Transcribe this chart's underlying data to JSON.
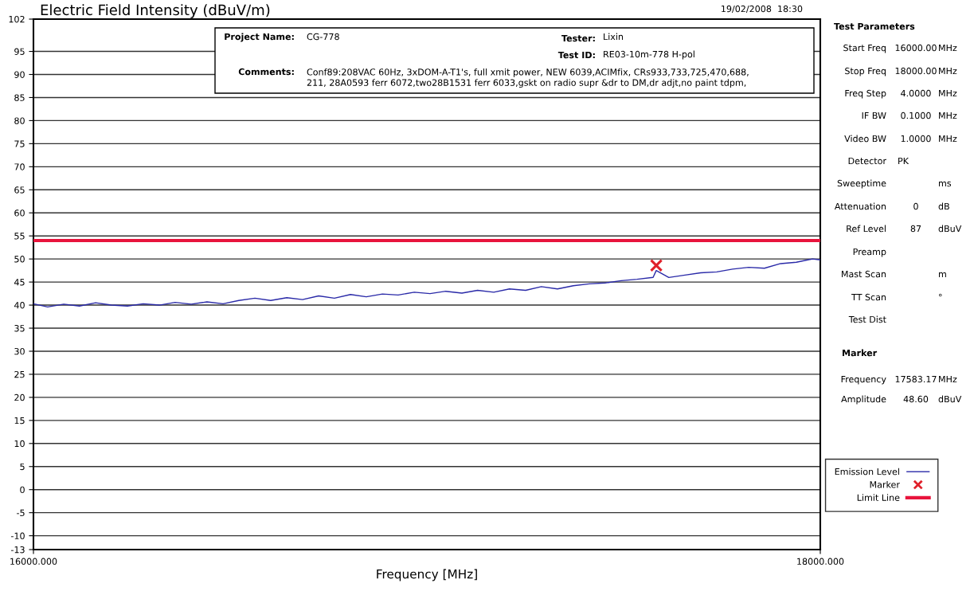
{
  "chart_data": {
    "type": "line",
    "title": "Electric Field Intensity (dBuV/m)",
    "xlabel": "Frequency [MHz]",
    "series": [
      {
        "name": "Emission Level",
        "color": "#2a2aa8",
        "marker": "none",
        "line_style": "solid",
        "x": [
          16000,
          16036,
          16077,
          16117,
          16158,
          16198,
          16239,
          16279,
          16320,
          16360,
          16401,
          16441,
          16482,
          16522,
          16563,
          16603,
          16644,
          16684,
          16725,
          16765,
          16806,
          16846,
          16887,
          16927,
          16968,
          17008,
          17048,
          17089,
          17129,
          17170,
          17210,
          17251,
          17291,
          17332,
          17372,
          17413,
          17453,
          17494,
          17534,
          17575,
          17583,
          17615,
          17656,
          17696,
          17737,
          17777,
          17818,
          17858,
          17899,
          17939,
          17980,
          18000
        ],
        "values": [
          40.3,
          39.6,
          40.2,
          39.8,
          40.5,
          40.0,
          39.8,
          40.3,
          40.0,
          40.6,
          40.2,
          40.7,
          40.3,
          41.0,
          41.5,
          41.0,
          41.6,
          41.2,
          42.0,
          41.5,
          42.3,
          41.8,
          42.4,
          42.2,
          42.8,
          42.5,
          43.0,
          42.6,
          43.2,
          42.8,
          43.5,
          43.2,
          44.0,
          43.5,
          44.2,
          44.6,
          44.8,
          45.3,
          45.6,
          46.0,
          47.5,
          46.0,
          46.5,
          47.0,
          47.2,
          47.8,
          48.2,
          48.0,
          49.0,
          49.3,
          50.0,
          49.8
        ]
      },
      {
        "name": "Marker",
        "type": "scatter",
        "color": "#e0202a",
        "marker": "cross",
        "x": [
          17583.17
        ],
        "values": [
          48.6
        ]
      },
      {
        "name": "Limit Line",
        "color": "#e8143c",
        "marker": "none",
        "line_style": "solid",
        "x": [
          16000,
          18000
        ],
        "values": [
          54,
          54
        ]
      }
    ],
    "xlim": [
      16000,
      18000
    ],
    "xticks": [
      {
        "value": 16000,
        "label": "16000.000"
      },
      {
        "value": 18000,
        "label": "18000.000"
      }
    ],
    "ylim": [
      -13,
      102
    ],
    "yticks": [
      -13,
      -10,
      -5,
      0,
      5,
      10,
      15,
      20,
      25,
      30,
      35,
      40,
      45,
      50,
      55,
      60,
      65,
      70,
      75,
      80,
      85,
      90,
      95,
      102
    ],
    "grid": "y",
    "legend": "bottom right",
    "annotations": [
      "19/02/2008  18:30",
      "Project Name:",
      "CG-778",
      "Tester:",
      "Lixin",
      "Test ID:",
      "RE03-10m-778 H-pol",
      "Comments:",
      "Conf89:208VAC 60Hz, 3xDOM-A-T1's, full xmit power, NEW 6039,ACIMfix, CRs933,733,725,470,688,\n211, 28A0593 ferr 6072,two28B1531 ferr 6033,gskt on radio supr &dr to DM,dr adjt,no paint tdpm,",
      "Test Parameters",
      "Start Freq",
      "16000.00",
      "MHz",
      "Stop Freq",
      "18000.00",
      "MHz",
      "Freq Step",
      "4.0000",
      "MHz",
      "IF BW",
      "0.1000",
      "MHz",
      "Video BW",
      "1.0000",
      "MHz",
      "Detector",
      "PK",
      "Sweeptime",
      "ms",
      "Attenuation",
      "0",
      "dB",
      "Ref Level",
      "87",
      "dBuV",
      "Preamp",
      "Mast Scan",
      "m",
      "TT Scan",
      "°",
      "Test Dist",
      "Marker",
      "Frequency",
      "17583.17",
      "MHz",
      "Amplitude",
      "48.60",
      "dBuV"
    ]
  }
}
